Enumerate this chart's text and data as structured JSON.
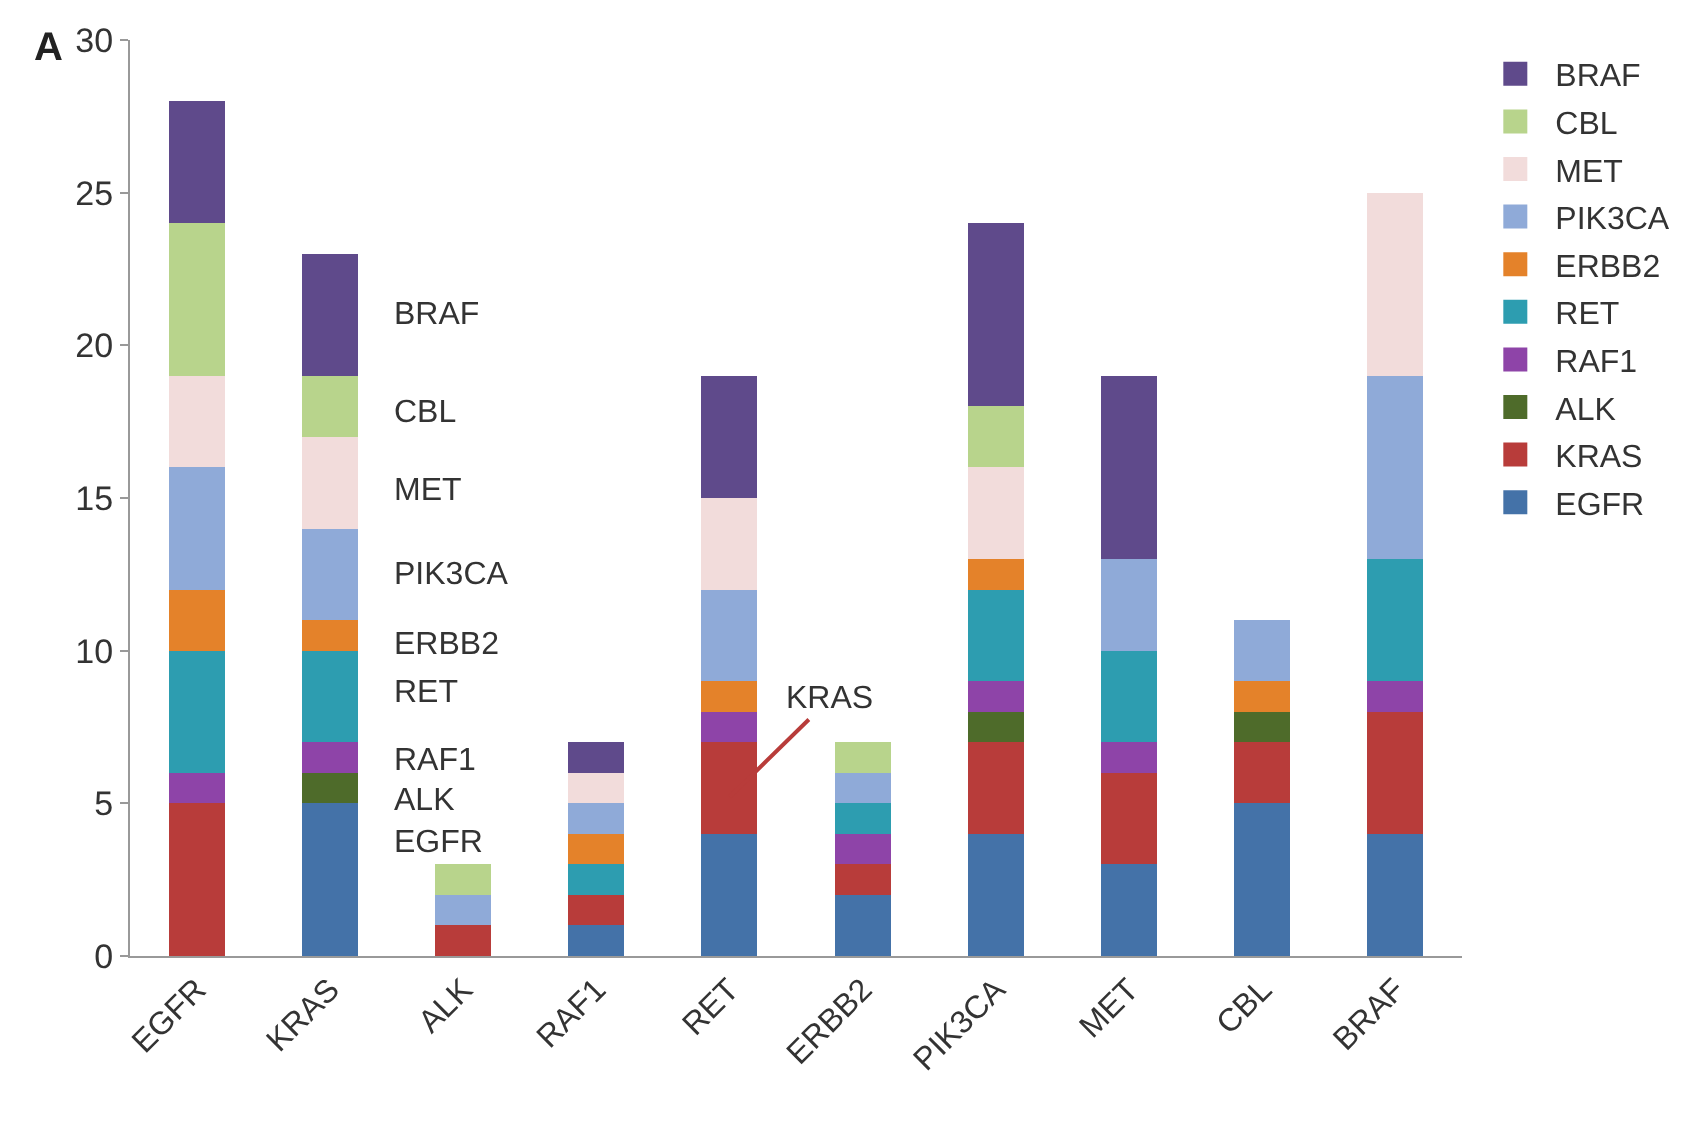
{
  "chart_data": {
    "type": "bar",
    "stacked": true,
    "categories": [
      "EGFR",
      "KRAS",
      "ALK",
      "RAF1",
      "RET",
      "ERBB2",
      "PIK3CA",
      "MET",
      "CBL",
      "BRAF"
    ],
    "series": [
      {
        "name": "EGFR",
        "color": "#4472a8",
        "values": [
          0,
          5,
          0,
          1,
          4,
          2,
          4,
          3,
          5,
          4
        ]
      },
      {
        "name": "KRAS",
        "color": "#b83c3a",
        "values": [
          5,
          0,
          1,
          1,
          3,
          1,
          3,
          3,
          2,
          4
        ]
      },
      {
        "name": "ALK",
        "color": "#4e6b2a",
        "values": [
          0,
          1,
          0,
          0,
          0,
          0,
          1,
          0,
          1,
          0
        ]
      },
      {
        "name": "RAF1",
        "color": "#8e44a8",
        "values": [
          1,
          1,
          0,
          0,
          1,
          1,
          1,
          1,
          0,
          1
        ]
      },
      {
        "name": "RET",
        "color": "#2d9db0",
        "values": [
          4,
          3,
          0,
          1,
          0,
          1,
          3,
          3,
          0,
          4
        ]
      },
      {
        "name": "ERBB2",
        "color": "#e4822a",
        "values": [
          2,
          1,
          0,
          1,
          1,
          0,
          1,
          0,
          1,
          0
        ]
      },
      {
        "name": "PIK3CA",
        "color": "#8faad8",
        "values": [
          4,
          3,
          1,
          1,
          3,
          1,
          0,
          3,
          2,
          6
        ]
      },
      {
        "name": "MET",
        "color": "#f2dcdb",
        "values": [
          3,
          3,
          0,
          1,
          3,
          0,
          3,
          0,
          0,
          6
        ]
      },
      {
        "name": "CBL",
        "color": "#b8d48c",
        "values": [
          5,
          2,
          1,
          0,
          0,
          1,
          2,
          0,
          0,
          0
        ]
      },
      {
        "name": "BRAF",
        "color": "#5f4a8b",
        "values": [
          4,
          4,
          0,
          1,
          4,
          0,
          6,
          6,
          0,
          0
        ]
      }
    ],
    "ylim": [
      0,
      30
    ],
    "yticks": [
      0,
      5,
      10,
      15,
      20,
      25,
      30
    ],
    "legend": "right",
    "annotations": [
      "A",
      "BRAF",
      "CBL",
      "MET",
      "PIK3CA",
      "ERBB2",
      "RET",
      "RAF1",
      "ALK",
      "EGFR",
      "KRAS"
    ]
  }
}
